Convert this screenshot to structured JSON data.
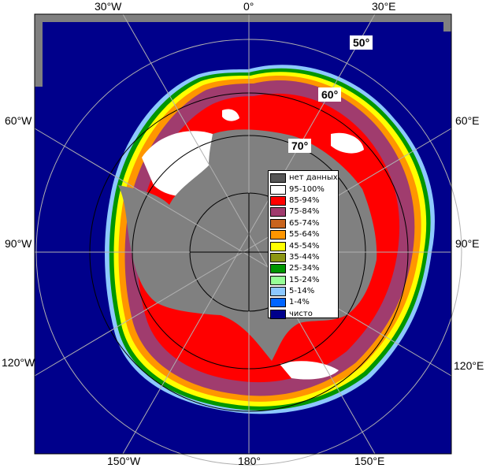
{
  "map": {
    "colors": {
      "ocean": "#00008b",
      "land": "#808080",
      "frame_bg": "#ffffff",
      "grid": "#b0b0b0",
      "grid_inner": "#000000"
    },
    "longitude_labels": {
      "top_w30": "30°W",
      "top_0": "0°",
      "top_e30": "30°E",
      "left_w60": "60°W",
      "left_w90": "90°W",
      "left_w120": "120°W",
      "right_e60": "60°E",
      "right_e90": "90°E",
      "right_e120": "120°E",
      "bottom_w150": "150°W",
      "bottom_180": "180°",
      "bottom_e150": "150°E"
    },
    "latitude_labels": {
      "lat50": "50°",
      "lat60": "60°",
      "lat70": "70°"
    },
    "legend": [
      {
        "label": "нет данных",
        "color": "#555555"
      },
      {
        "label": "95-100%",
        "color": "#ffffff"
      },
      {
        "label": "85-94%",
        "color": "#ff0000"
      },
      {
        "label": "75-84%",
        "color": "#a03c6e"
      },
      {
        "label": "65-74%",
        "color": "#c8641e"
      },
      {
        "label": "55-64%",
        "color": "#ff9600"
      },
      {
        "label": "45-54%",
        "color": "#ffff00"
      },
      {
        "label": "35-44%",
        "color": "#8c9614"
      },
      {
        "label": "25-34%",
        "color": "#009600"
      },
      {
        "label": "15-24%",
        "color": "#96ff96"
      },
      {
        "label": "5-14%",
        "color": "#8cc8ff"
      },
      {
        "label": "1-4%",
        "color": "#0064ff"
      },
      {
        "label": "чисто",
        "color": "#00008b"
      }
    ]
  }
}
